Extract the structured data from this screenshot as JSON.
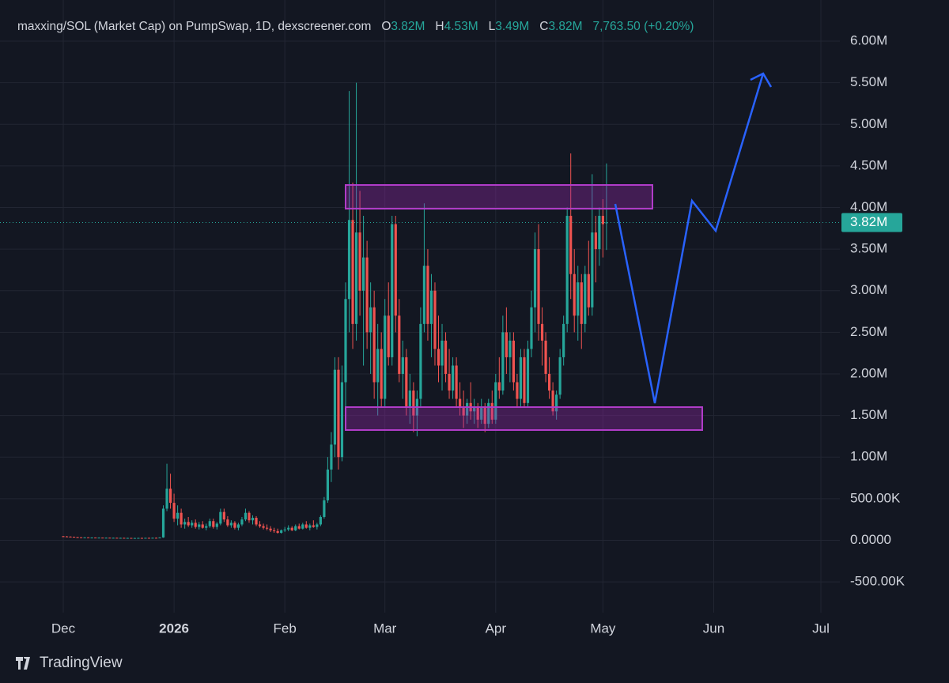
{
  "chart_data": {
    "type": "candlestick",
    "title": "maxxing/SOL (Market Cap) on PumpSwap, 1D, dexscreener.com",
    "header": {
      "o_key": "O",
      "o": "3.82M",
      "h_key": "H",
      "h": "4.53M",
      "l_key": "L",
      "l": "3.49M",
      "c_key": "C",
      "c": "3.82M",
      "change": "7,763.50 (+0.20%)"
    },
    "last_price_label": "3.82M",
    "up_color": "#26a69a",
    "down_color": "#ef5350",
    "xlim": [
      -17.7,
      217.3
    ],
    "xticks": [
      {
        "value": 0,
        "label": "Dec"
      },
      {
        "value": 31,
        "label": "2026"
      },
      {
        "value": 62,
        "label": "Feb"
      },
      {
        "value": 90,
        "label": "Mar"
      },
      {
        "value": 121,
        "label": "Apr"
      },
      {
        "value": 151,
        "label": "May"
      },
      {
        "value": 182,
        "label": "Jun"
      },
      {
        "value": 212,
        "label": "Jul"
      }
    ],
    "ylim": [
      -870000,
      6200000
    ],
    "yticks": [
      {
        "value": -500000,
        "label": "-500.00K"
      },
      {
        "value": 0,
        "label": "0.0000"
      },
      {
        "value": 500000,
        "label": "500.00K"
      },
      {
        "value": 1000000,
        "label": "1.00M"
      },
      {
        "value": 1500000,
        "label": "1.50M"
      },
      {
        "value": 2000000,
        "label": "2.00M"
      },
      {
        "value": 2500000,
        "label": "2.50M"
      },
      {
        "value": 3000000,
        "label": "3.00M"
      },
      {
        "value": 3500000,
        "label": "3.50M"
      },
      {
        "value": 4000000,
        "label": "4.00M"
      },
      {
        "value": 4500000,
        "label": "4.50M"
      },
      {
        "value": 5000000,
        "label": "5.00M"
      },
      {
        "value": 5500000,
        "label": "5.50M"
      },
      {
        "value": 6000000,
        "label": "6.00M"
      }
    ],
    "grid": true,
    "brand": "TradingView",
    "candles": [
      [
        48000,
        52000,
        44000,
        46000
      ],
      [
        46000,
        50000,
        42000,
        44000
      ],
      [
        44000,
        47000,
        40000,
        42000
      ],
      [
        42000,
        44000,
        36000,
        38000
      ],
      [
        38000,
        41000,
        34000,
        36000
      ],
      [
        36000,
        38000,
        32000,
        34000
      ],
      [
        34000,
        37000,
        31000,
        35000
      ],
      [
        35000,
        36000,
        30000,
        32000
      ],
      [
        32000,
        35000,
        30000,
        33000
      ],
      [
        33000,
        34000,
        29000,
        31000
      ],
      [
        31000,
        34000,
        29000,
        32000
      ],
      [
        32000,
        33000,
        28000,
        30000
      ],
      [
        30000,
        33000,
        28000,
        31000
      ],
      [
        31000,
        32000,
        27000,
        29000
      ],
      [
        29000,
        32000,
        27000,
        30000
      ],
      [
        30000,
        31000,
        26000,
        28000
      ],
      [
        28000,
        31000,
        26000,
        29000
      ],
      [
        29000,
        30000,
        25000,
        27000
      ],
      [
        27000,
        30000,
        25000,
        28000
      ],
      [
        28000,
        29000,
        24000,
        26000
      ],
      [
        26000,
        29000,
        24000,
        27000
      ],
      [
        27000,
        30000,
        25000,
        28000
      ],
      [
        28000,
        31000,
        25000,
        27000
      ],
      [
        27000,
        30000,
        25000,
        29000
      ],
      [
        29000,
        31000,
        26000,
        28000
      ],
      [
        28000,
        32000,
        26000,
        30000
      ],
      [
        30000,
        33000,
        27000,
        29000
      ],
      [
        29000,
        36000,
        27000,
        34000
      ],
      [
        34000,
        420000,
        30000,
        380000
      ],
      [
        380000,
        920000,
        350000,
        620000
      ],
      [
        620000,
        800000,
        380000,
        450000
      ],
      [
        450000,
        560000,
        220000,
        260000
      ],
      [
        260000,
        420000,
        180000,
        330000
      ],
      [
        330000,
        380000,
        150000,
        190000
      ],
      [
        190000,
        260000,
        140000,
        220000
      ],
      [
        220000,
        280000,
        160000,
        180000
      ],
      [
        180000,
        240000,
        150000,
        210000
      ],
      [
        210000,
        250000,
        140000,
        160000
      ],
      [
        160000,
        220000,
        130000,
        190000
      ],
      [
        190000,
        230000,
        140000,
        150000
      ],
      [
        150000,
        200000,
        120000,
        170000
      ],
      [
        170000,
        260000,
        150000,
        230000
      ],
      [
        230000,
        260000,
        140000,
        160000
      ],
      [
        160000,
        220000,
        130000,
        200000
      ],
      [
        200000,
        380000,
        180000,
        340000
      ],
      [
        340000,
        380000,
        220000,
        250000
      ],
      [
        250000,
        290000,
        160000,
        180000
      ],
      [
        180000,
        240000,
        150000,
        210000
      ],
      [
        210000,
        230000,
        130000,
        150000
      ],
      [
        150000,
        210000,
        120000,
        190000
      ],
      [
        190000,
        280000,
        170000,
        250000
      ],
      [
        250000,
        380000,
        230000,
        330000
      ],
      [
        330000,
        350000,
        210000,
        240000
      ],
      [
        240000,
        300000,
        190000,
        270000
      ],
      [
        270000,
        290000,
        170000,
        190000
      ],
      [
        190000,
        230000,
        150000,
        170000
      ],
      [
        170000,
        200000,
        130000,
        150000
      ],
      [
        150000,
        190000,
        120000,
        140000
      ],
      [
        140000,
        170000,
        100000,
        120000
      ],
      [
        120000,
        150000,
        90000,
        110000
      ],
      [
        110000,
        140000,
        80000,
        90000
      ],
      [
        90000,
        130000,
        80000,
        120000
      ],
      [
        120000,
        160000,
        100000,
        130000
      ],
      [
        130000,
        180000,
        110000,
        150000
      ],
      [
        150000,
        170000,
        110000,
        120000
      ],
      [
        120000,
        190000,
        110000,
        170000
      ],
      [
        170000,
        200000,
        130000,
        140000
      ],
      [
        140000,
        210000,
        130000,
        190000
      ],
      [
        190000,
        230000,
        140000,
        150000
      ],
      [
        150000,
        200000,
        120000,
        180000
      ],
      [
        180000,
        240000,
        150000,
        160000
      ],
      [
        160000,
        210000,
        130000,
        190000
      ],
      [
        190000,
        300000,
        170000,
        280000
      ],
      [
        280000,
        520000,
        260000,
        480000
      ],
      [
        480000,
        1000000,
        450000,
        850000
      ],
      [
        850000,
        1300000,
        700000,
        1150000
      ],
      [
        1150000,
        2200000,
        1000000,
        2050000
      ],
      [
        2050000,
        2200000,
        850000,
        1000000
      ],
      [
        1000000,
        2100000,
        950000,
        1900000
      ],
      [
        1900000,
        3100000,
        1500000,
        2900000
      ],
      [
        2900000,
        5400000,
        2500000,
        3850000
      ],
      [
        3850000,
        4300000,
        2300000,
        2600000
      ],
      [
        2600000,
        5500000,
        2400000,
        3700000
      ],
      [
        3700000,
        4200000,
        2700000,
        3000000
      ],
      [
        3000000,
        3900000,
        2100000,
        3400000
      ],
      [
        3400000,
        3600000,
        2300000,
        2500000
      ],
      [
        2500000,
        3100000,
        2000000,
        2800000
      ],
      [
        2800000,
        3000000,
        1700000,
        1900000
      ],
      [
        1900000,
        2600000,
        1500000,
        2300000
      ],
      [
        2300000,
        2500000,
        1600000,
        1700000
      ],
      [
        1700000,
        2900000,
        1600000,
        2700000
      ],
      [
        2700000,
        3100000,
        2100000,
        2200000
      ],
      [
        2200000,
        3900000,
        2100000,
        3800000
      ],
      [
        3800000,
        3900000,
        2500000,
        2700000
      ],
      [
        2700000,
        2900000,
        1900000,
        2000000
      ],
      [
        2000000,
        2400000,
        1700000,
        2200000
      ],
      [
        2200000,
        2300000,
        1500000,
        1600000
      ],
      [
        1600000,
        2000000,
        1400000,
        1800000
      ],
      [
        1800000,
        1900000,
        1300000,
        1500000
      ],
      [
        1500000,
        1800000,
        1250000,
        1700000
      ],
      [
        1700000,
        2800000,
        1600000,
        2600000
      ],
      [
        2600000,
        4050000,
        2500000,
        3300000
      ],
      [
        3300000,
        3500000,
        2400000,
        2600000
      ],
      [
        2600000,
        3200000,
        2200000,
        3000000
      ],
      [
        3000000,
        3100000,
        2100000,
        2300000
      ],
      [
        2300000,
        2700000,
        1900000,
        2100000
      ],
      [
        2100000,
        2600000,
        1800000,
        2400000
      ],
      [
        2400000,
        2500000,
        1900000,
        2000000
      ],
      [
        2000000,
        2300000,
        1700000,
        1800000
      ],
      [
        1800000,
        2200000,
        1700000,
        2100000
      ],
      [
        2100000,
        2200000,
        1600000,
        1700000
      ],
      [
        1700000,
        1900000,
        1500000,
        1600000
      ],
      [
        1600000,
        1800000,
        1350000,
        1500000
      ],
      [
        1500000,
        1700000,
        1400000,
        1650000
      ],
      [
        1650000,
        1900000,
        1450000,
        1550000
      ],
      [
        1550000,
        1700000,
        1400000,
        1600000
      ],
      [
        1600000,
        1650000,
        1350000,
        1450000
      ],
      [
        1450000,
        1700000,
        1400000,
        1600000
      ],
      [
        1600000,
        1650000,
        1300000,
        1400000
      ],
      [
        1400000,
        1700000,
        1350000,
        1650000
      ],
      [
        1650000,
        1800000,
        1400000,
        1450000
      ],
      [
        1450000,
        2000000,
        1400000,
        1900000
      ],
      [
        1900000,
        2200000,
        1700000,
        1800000
      ],
      [
        1800000,
        2700000,
        1750000,
        2500000
      ],
      [
        2500000,
        2800000,
        2000000,
        2200000
      ],
      [
        2200000,
        2500000,
        1900000,
        2400000
      ],
      [
        2400000,
        2500000,
        1800000,
        1900000
      ],
      [
        1900000,
        2000000,
        1600000,
        1700000
      ],
      [
        1700000,
        2300000,
        1600000,
        2200000
      ],
      [
        2200000,
        2300000,
        1600000,
        1650000
      ],
      [
        1650000,
        2400000,
        1600000,
        2300000
      ],
      [
        2300000,
        3000000,
        2200000,
        2800000
      ],
      [
        2800000,
        3700000,
        2500000,
        3500000
      ],
      [
        3500000,
        3800000,
        2400000,
        2600000
      ],
      [
        2600000,
        2800000,
        2100000,
        2400000
      ],
      [
        2400000,
        2500000,
        1900000,
        2000000
      ],
      [
        2000000,
        2200000,
        1700000,
        1800000
      ],
      [
        1800000,
        1900000,
        1500000,
        1550000
      ],
      [
        1550000,
        1800000,
        1450000,
        1750000
      ],
      [
        1750000,
        2300000,
        1700000,
        2200000
      ],
      [
        2200000,
        2700000,
        2100000,
        2600000
      ],
      [
        2600000,
        4000000,
        2500000,
        3900000
      ],
      [
        3900000,
        4650000,
        2900000,
        3200000
      ],
      [
        3200000,
        3500000,
        2500000,
        2700000
      ],
      [
        2700000,
        3300000,
        2400000,
        3100000
      ],
      [
        3100000,
        3200000,
        2300000,
        2600000
      ],
      [
        2600000,
        3300000,
        2500000,
        3200000
      ],
      [
        3200000,
        3600000,
        2700000,
        2800000
      ],
      [
        2800000,
        4400000,
        2700000,
        3700000
      ],
      [
        3700000,
        3900000,
        3100000,
        3500000
      ],
      [
        3500000,
        4000000,
        3300000,
        3900000
      ],
      [
        3900000,
        4100000,
        3400000,
        3800000
      ],
      [
        3820000,
        4530000,
        3490000,
        3820000
      ]
    ]
  }
}
